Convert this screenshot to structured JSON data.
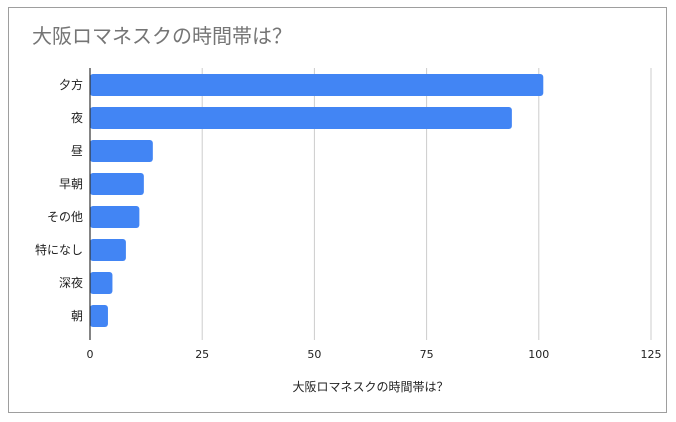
{
  "chart_data": {
    "type": "bar",
    "orientation": "horizontal",
    "title": "大阪ロマネスクの時間帯は？",
    "xlabel": "大阪ロマネスクの時間帯は？",
    "ylabel": "",
    "categories": [
      "夕方",
      "夜",
      "昼",
      "早朝",
      "その他",
      "特になし",
      "深夜",
      "朝"
    ],
    "values": [
      101,
      94,
      14,
      12,
      11,
      8,
      5,
      4
    ],
    "xlim": [
      0,
      125
    ],
    "xticks": [
      0,
      25,
      50,
      75,
      100,
      125
    ],
    "grid": "vertical",
    "legend": "none",
    "colors": {
      "bar": "#4285f4",
      "grid": "#cccccc",
      "axis": "#333333",
      "title": "#757575"
    }
  }
}
